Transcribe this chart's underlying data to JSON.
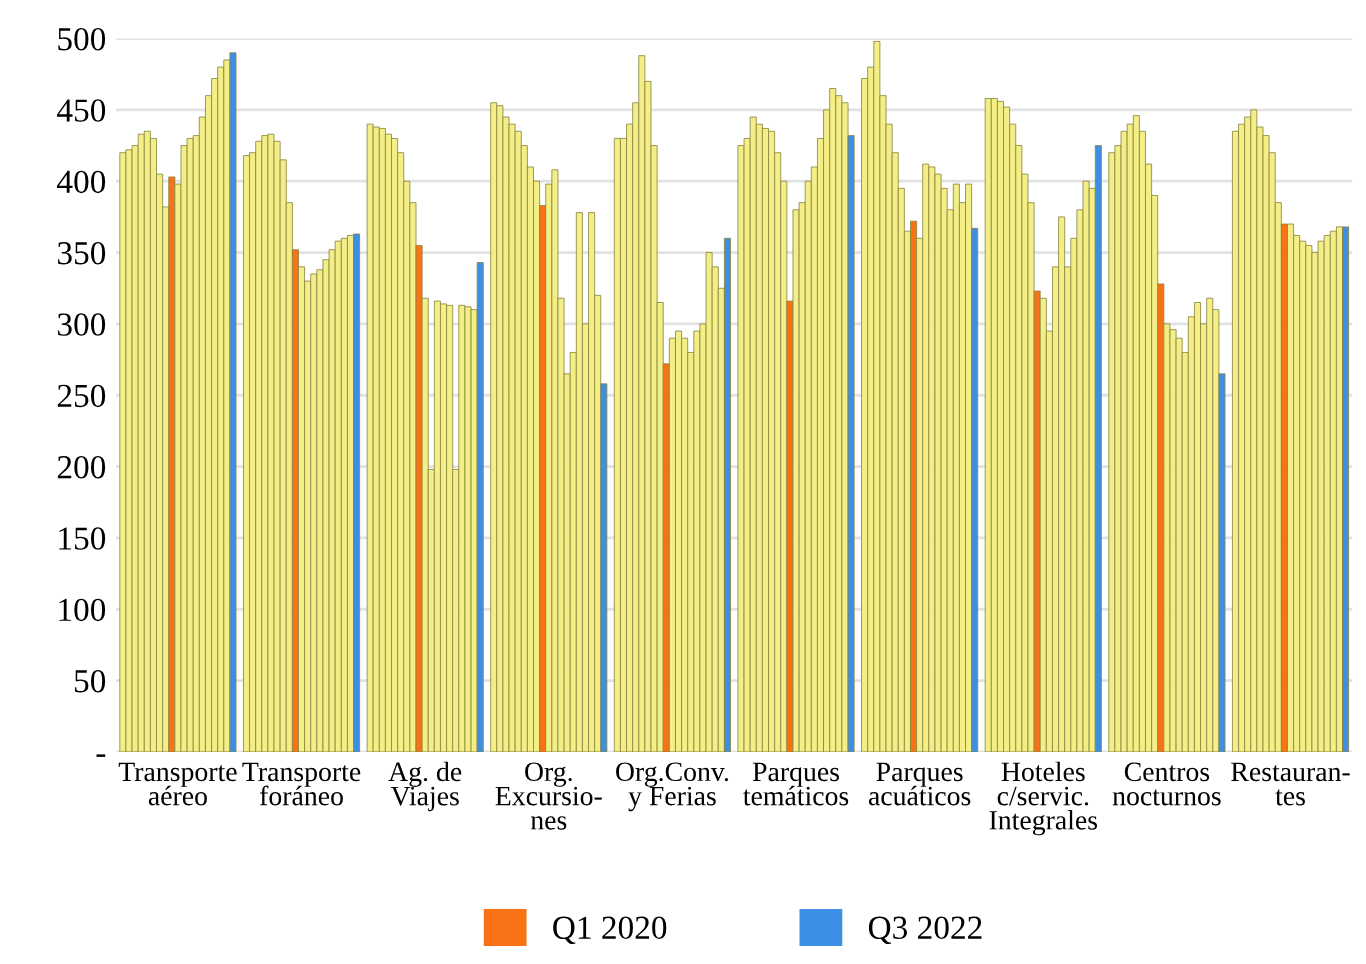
{
  "chart_data": {
    "type": "bar",
    "categories": [
      "Transporte\naéreo",
      "Transporte\nforáneo",
      "Ag. de\nViajes",
      "Org.\nExcursio-\nnes",
      "Org.Conv.\ny Ferias",
      "Parques\ntemáticos",
      "Parques\nacuáticos",
      "Hoteles\nc/servic.\nIntegrales",
      "Centros\nnocturnos",
      "Restauran-\ntes"
    ],
    "series": [
      {
        "color": "#f3ee86",
        "values": [
          420,
          418,
          440,
          455,
          430,
          425,
          472,
          458,
          420,
          435
        ]
      },
      {
        "color": "#f3ee86",
        "values": [
          422,
          420,
          438,
          453,
          430,
          430,
          480,
          458,
          425,
          440
        ]
      },
      {
        "color": "#f3ee86",
        "values": [
          425,
          428,
          437,
          445,
          440,
          445,
          498,
          456,
          435,
          445
        ]
      },
      {
        "color": "#f3ee86",
        "values": [
          433,
          432,
          433,
          440,
          455,
          440,
          460,
          452,
          440,
          450
        ]
      },
      {
        "color": "#f3ee86",
        "values": [
          435,
          433,
          430,
          435,
          488,
          437,
          440,
          440,
          446,
          438
        ]
      },
      {
        "color": "#f3ee86",
        "values": [
          430,
          428,
          420,
          425,
          470,
          435,
          420,
          425,
          435,
          432
        ]
      },
      {
        "color": "#f3ee86",
        "values": [
          405,
          415,
          400,
          410,
          425,
          420,
          395,
          405,
          412,
          420
        ]
      },
      {
        "color": "#f3ee86",
        "values": [
          382,
          385,
          385,
          400,
          315,
          400,
          365,
          385,
          390,
          385
        ]
      },
      {
        "name": "Q1 2020",
        "color": "#fa7216",
        "values": [
          403,
          352,
          355,
          383,
          272,
          316,
          372,
          323,
          328,
          370
        ]
      },
      {
        "color": "#f3ee86",
        "values": [
          398,
          340,
          318,
          398,
          290,
          380,
          360,
          318,
          300,
          370
        ]
      },
      {
        "color": "#f3ee86",
        "values": [
          425,
          330,
          198,
          408,
          295,
          385,
          412,
          295,
          296,
          362
        ]
      },
      {
        "color": "#f3ee86",
        "values": [
          430,
          335,
          316,
          318,
          290,
          400,
          410,
          340,
          290,
          358
        ]
      },
      {
        "color": "#f3ee86",
        "values": [
          432,
          338,
          314,
          265,
          280,
          410,
          405,
          375,
          280,
          355
        ]
      },
      {
        "color": "#f3ee86",
        "values": [
          445,
          345,
          313,
          280,
          295,
          430,
          395,
          340,
          305,
          350
        ]
      },
      {
        "color": "#f3ee86",
        "values": [
          460,
          352,
          198,
          378,
          300,
          450,
          380,
          360,
          315,
          358
        ]
      },
      {
        "color": "#f3ee86",
        "values": [
          472,
          358,
          313,
          300,
          350,
          465,
          398,
          380,
          300,
          362
        ]
      },
      {
        "color": "#f3ee86",
        "values": [
          480,
          360,
          312,
          378,
          340,
          460,
          385,
          400,
          318,
          365
        ]
      },
      {
        "color": "#f3ee86",
        "values": [
          485,
          362,
          310,
          320,
          325,
          455,
          398,
          395,
          310,
          368
        ]
      },
      {
        "name": "Q3 2022",
        "color": "#3d8fe6",
        "values": [
          490,
          363,
          343,
          258,
          360,
          432,
          367,
          425,
          265,
          368
        ]
      }
    ],
    "ylim": [
      0,
      500
    ],
    "yticks": [
      {
        "value": 0,
        "label": "-"
      },
      50,
      100,
      150,
      200,
      250,
      300,
      350,
      400,
      450,
      500
    ],
    "grid": "y",
    "legend": "bottom"
  }
}
